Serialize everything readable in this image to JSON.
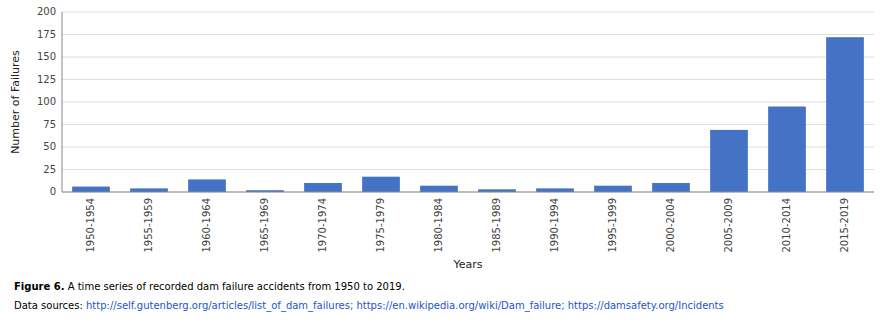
{
  "chart_data": {
    "type": "bar",
    "categories": [
      "1950-1954",
      "1955-1959",
      "1960-1964",
      "1965-1969",
      "1970-1974",
      "1975-1979",
      "1980-1984",
      "1985-1989",
      "1990-1994",
      "1995-1999",
      "2000-2004",
      "2005-2009",
      "2010-2014",
      "2015-2019"
    ],
    "values": [
      6,
      4,
      14,
      2,
      10,
      17,
      7,
      3,
      4,
      7,
      10,
      69,
      95,
      172
    ],
    "color": "#4472C4",
    "xlabel": "Years",
    "ylabel": "Number of Failures",
    "ylim": [
      0,
      200
    ],
    "yticks": [
      0,
      25,
      50,
      75,
      100,
      125,
      150,
      175,
      200
    ],
    "grid": true,
    "annotations": [
      {
        "text": "Figure 6."
      },
      {
        "text": " A time series of recorded dam failure accidents from 1950 to 2019."
      },
      {
        "text": "Data sources: "
      },
      {
        "text": "http://self.gutenberg.org/articles/list_of_dam_failures; https://en.wikipedia.org/wiki/Dam_failure; https://damsafety.org/Incidents",
        "color": "#2255cc"
      }
    ]
  }
}
